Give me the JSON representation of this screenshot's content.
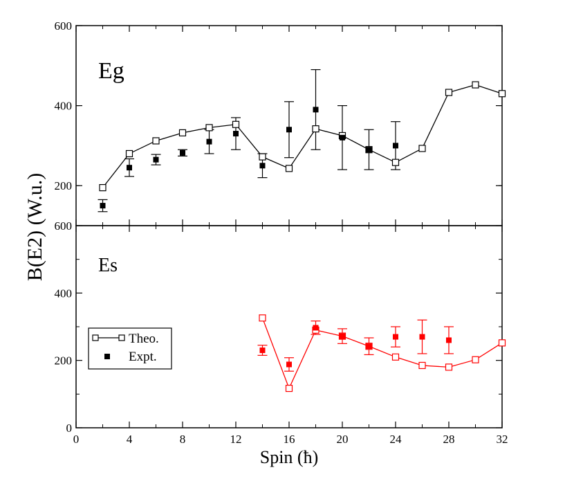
{
  "chart_data": {
    "type": "scatter",
    "ylabel": "B(E2) (W.u.)",
    "xlabel": "Spin (ћ)",
    "xlim": [
      0,
      32
    ],
    "x_ticks": [
      0,
      4,
      8,
      12,
      16,
      20,
      24,
      28,
      32
    ],
    "x_tick_labels": [
      "0",
      "4",
      "8",
      "12",
      "16",
      "20",
      "24",
      "28",
      "32"
    ],
    "panels": [
      {
        "name": "eg",
        "label": "Eg",
        "ylim": [
          100,
          600
        ],
        "y_ticks": [
          200,
          400,
          600
        ],
        "y_tick_labels": [
          "200",
          "400",
          "600"
        ],
        "color": "#000000",
        "theo": {
          "x": [
            2,
            4,
            6,
            8,
            10,
            12,
            14,
            16,
            18,
            20,
            22,
            24,
            26,
            28,
            30,
            32
          ],
          "y": [
            195,
            280,
            312,
            332,
            345,
            353,
            272,
            243,
            342,
            325,
            290,
            258,
            293,
            433,
            452,
            430
          ]
        },
        "expt": {
          "x": [
            2,
            4,
            6,
            8,
            10,
            12,
            14,
            16,
            18,
            20,
            22,
            24
          ],
          "y": [
            150,
            245,
            265,
            282,
            310,
            330,
            250,
            340,
            390,
            320,
            290,
            300
          ],
          "err": [
            15,
            22,
            13,
            8,
            30,
            40,
            30,
            70,
            100,
            80,
            50,
            60
          ]
        }
      },
      {
        "name": "es",
        "label": "Es",
        "ylim": [
          0,
          600
        ],
        "y_ticks": [
          0,
          200,
          400,
          600
        ],
        "y_tick_labels": [
          "0",
          "200",
          "400",
          "600"
        ],
        "color": "#ff0000",
        "theo": {
          "x": [
            14,
            16,
            18,
            20,
            22,
            24,
            26,
            28,
            30,
            32
          ],
          "y": [
            326,
            117,
            290,
            272,
            242,
            210,
            185,
            180,
            202,
            252
          ]
        },
        "expt": {
          "x": [
            14,
            16,
            18,
            20,
            22,
            24,
            26,
            28
          ],
          "y": [
            230,
            188,
            297,
            272,
            242,
            270,
            270,
            260
          ],
          "err": [
            15,
            20,
            20,
            22,
            25,
            30,
            50,
            40
          ]
        }
      }
    ],
    "legend": {
      "position": "lower-left of Es panel",
      "theo_label": "Theo.",
      "expt_label": "Expt."
    }
  }
}
